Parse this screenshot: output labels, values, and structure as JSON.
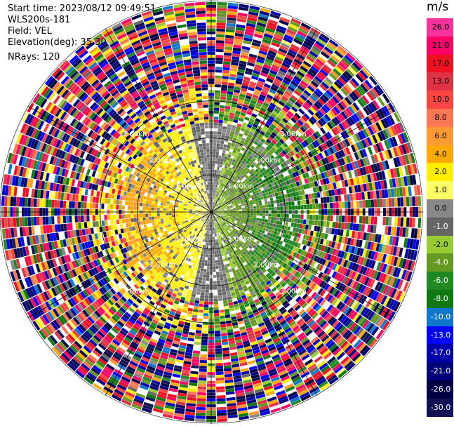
{
  "info": {
    "start_time": "Start time: 2023/08/12 09:49:51",
    "instrument": "WLS200s-181",
    "field": "Field: VEL",
    "elevation": "Elevation(deg): 35.30",
    "nrays": "NRays: 120"
  },
  "colorbar": {
    "unit": "m/s",
    "labels": [
      "26.0",
      "21.0",
      "17.0",
      "13.0",
      "10.0",
      "8.0",
      "6.0",
      "4.0",
      "2.0",
      "1.0",
      "0.0",
      "-1.0",
      "-2.0",
      "-4.0",
      "-6.0",
      "-8.0",
      "-10.0",
      "-13.0",
      "-17.0",
      "-21.0",
      "-26.0",
      "-30.0"
    ],
    "colors": [
      "#ff3399",
      "#ff0066",
      "#ee1122",
      "#dd3344",
      "#ff4444",
      "#ff7755",
      "#ff9933",
      "#ffaa00",
      "#ffee00",
      "#ffff66",
      "#888888",
      "#666666",
      "#99cc33",
      "#669922",
      "#228822",
      "#117711",
      "#1177cc",
      "#0000ff",
      "#0000aa",
      "#000077",
      "#000044",
      "#111155"
    ]
  },
  "chart_data": {
    "type": "heatmap",
    "projection": "polar-ppi",
    "field": "VEL",
    "units": "m/s",
    "nrays": 120,
    "range_rings_km": [
      1.0,
      2.0,
      3.0
    ],
    "ring_labels": [
      "1.00km",
      "2.00km",
      "3.00km"
    ],
    "radial_spokes_deg": [
      0,
      30,
      60,
      90,
      120,
      150,
      180,
      210,
      240,
      270,
      300,
      330
    ],
    "value_range": [
      -30.0,
      26.0
    ],
    "pattern": {
      "near_field_negative_side": "east",
      "near_field_negative_values": [
        -1.0,
        -6.0
      ],
      "near_field_positive_side": "west",
      "near_field_positive_values": [
        1.0,
        6.0
      ],
      "far_field": "noise across full color range"
    }
  }
}
